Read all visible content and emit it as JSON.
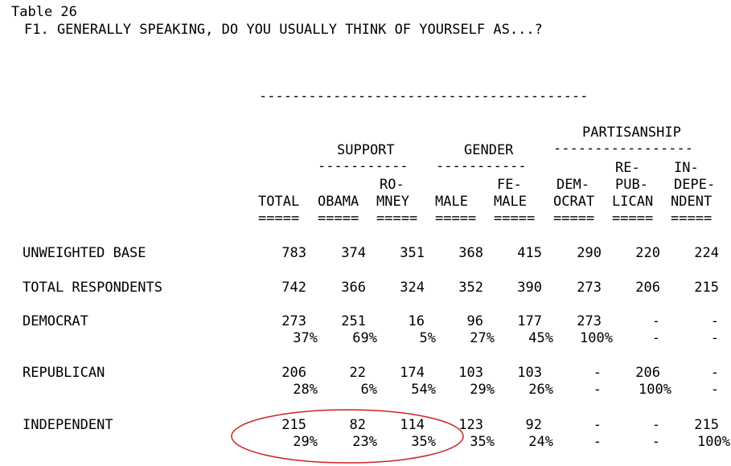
{
  "table": {
    "number_label": "Table 26",
    "question": "F1. GENERALLY SPEAKING, DO YOU USUALLY THINK OF YOURSELF AS...?"
  },
  "top_rule": "----------------------------------------",
  "header": {
    "group_support": "SUPPORT",
    "group_gender": "GENDER",
    "group_partisanship": "PARTISANSHIP",
    "support_rule": "-----------",
    "gender_rule": "-----------",
    "partisanship_rule": "-----------------",
    "columns": [
      {
        "line1": "",
        "line2": "",
        "line3": "TOTAL"
      },
      {
        "line1": "",
        "line2": "",
        "line3": "OBAMA"
      },
      {
        "line1": "",
        "line2": "RO-",
        "line3": "MNEY"
      },
      {
        "line1": "",
        "line2": "",
        "line3": "MALE"
      },
      {
        "line1": "",
        "line2": "FE-",
        "line3": "MALE"
      },
      {
        "line1": "",
        "line2": "DEM-",
        "line3": "OCRAT"
      },
      {
        "line1": "RE-",
        "line2": "PUB-",
        "line3": "LICAN"
      },
      {
        "line1": "IN-",
        "line2": "DEPE-",
        "line3": "NDENT"
      }
    ],
    "underline": "====="
  },
  "rows": [
    {
      "label": "UNWEIGHTED BASE",
      "counts": [
        "783",
        "374",
        "351",
        "368",
        "415",
        "290",
        "220",
        "224"
      ],
      "pcts": null
    },
    {
      "label": "TOTAL RESPONDENTS",
      "counts": [
        "742",
        "366",
        "324",
        "352",
        "390",
        "273",
        "206",
        "215"
      ],
      "pcts": null
    },
    {
      "label": "DEMOCRAT",
      "counts": [
        "273",
        "251",
        "16",
        "96",
        "177",
        "273",
        "-",
        "-"
      ],
      "pcts": [
        "37%",
        "69%",
        "5%",
        "27%",
        "45%",
        "100%",
        "-",
        "-"
      ]
    },
    {
      "label": "REPUBLICAN",
      "counts": [
        "206",
        "22",
        "174",
        "103",
        "103",
        "-",
        "206",
        "-"
      ],
      "pcts": [
        "28%",
        "6%",
        "54%",
        "29%",
        "26%",
        "-",
        "100%",
        "-"
      ]
    },
    {
      "label": "INDEPENDENT",
      "counts": [
        "215",
        "82",
        "114",
        "123",
        "92",
        "-",
        "-",
        "215"
      ],
      "pcts": [
        "29%",
        "23%",
        "35%",
        "35%",
        "24%",
        "-",
        "-",
        "100%"
      ]
    }
  ],
  "annotation": {
    "shape": "ellipse",
    "color": "#cc2222"
  }
}
